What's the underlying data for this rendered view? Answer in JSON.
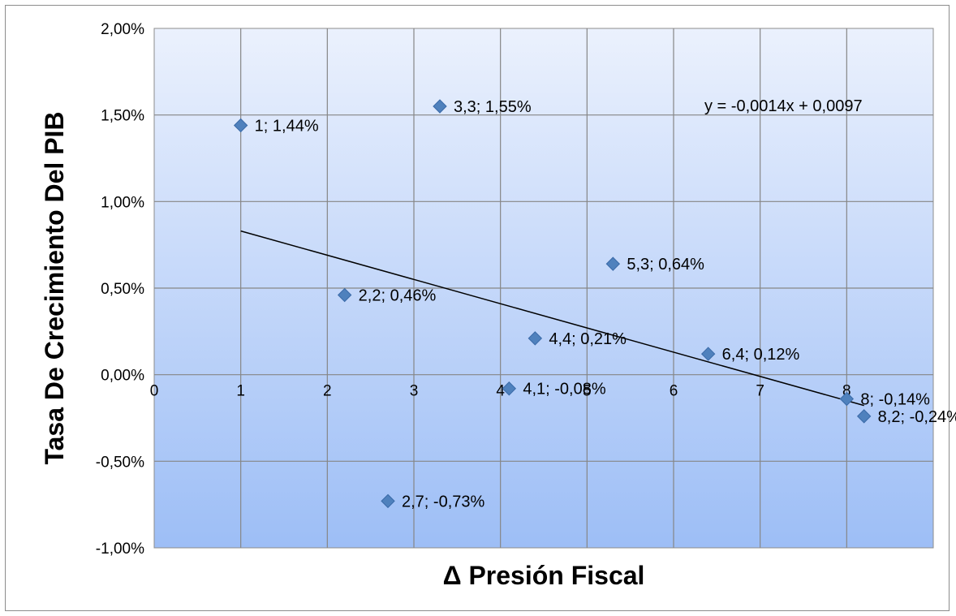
{
  "chart_data": {
    "type": "scatter",
    "xlabel": "Δ Presión Fiscal",
    "ylabel": "Tasa De Crecimiento Del PIB",
    "xlim": [
      0,
      9
    ],
    "ylim": [
      -0.01,
      0.02
    ],
    "x_ticks": [
      0,
      1,
      2,
      3,
      4,
      5,
      6,
      7,
      8
    ],
    "x_tick_labels": [
      "0",
      "1",
      "2",
      "3",
      "4",
      "5",
      "6",
      "7",
      "8"
    ],
    "y_ticks": [
      -0.01,
      -0.005,
      0,
      0.005,
      0.01,
      0.015,
      0.02
    ],
    "y_tick_labels": [
      "-1,00%",
      "-0,50%",
      "0,00%",
      "0,50%",
      "1,00%",
      "1,50%",
      "2,00%"
    ],
    "grid": true,
    "marker_color": "#4f81bd",
    "points": [
      {
        "x": 1,
        "y": 0.0144,
        "label": "1; 1,44%"
      },
      {
        "x": 3.3,
        "y": 0.0155,
        "label": "3,3; 1,55%"
      },
      {
        "x": 2.2,
        "y": 0.0046,
        "label": "2,2; 0,46%"
      },
      {
        "x": 5.3,
        "y": 0.0064,
        "label": "5,3; 0,64%"
      },
      {
        "x": 4.4,
        "y": 0.0021,
        "label": "4,4; 0,21%"
      },
      {
        "x": 6.4,
        "y": 0.0012,
        "label": "6,4; 0,12%"
      },
      {
        "x": 4.1,
        "y": -0.0008,
        "label": "4,1; -0,08%"
      },
      {
        "x": 8,
        "y": -0.0014,
        "label": "8; -0,14%"
      },
      {
        "x": 8.2,
        "y": -0.0024,
        "label": "8,2; -0,24%"
      },
      {
        "x": 2.7,
        "y": -0.0073,
        "label": "2,7; -0,73%"
      }
    ],
    "trendline": {
      "slope": -0.0014,
      "intercept": 0.0097,
      "x_range": [
        1,
        8.2
      ],
      "equation": "y = -0,0014x + 0,0097"
    }
  }
}
